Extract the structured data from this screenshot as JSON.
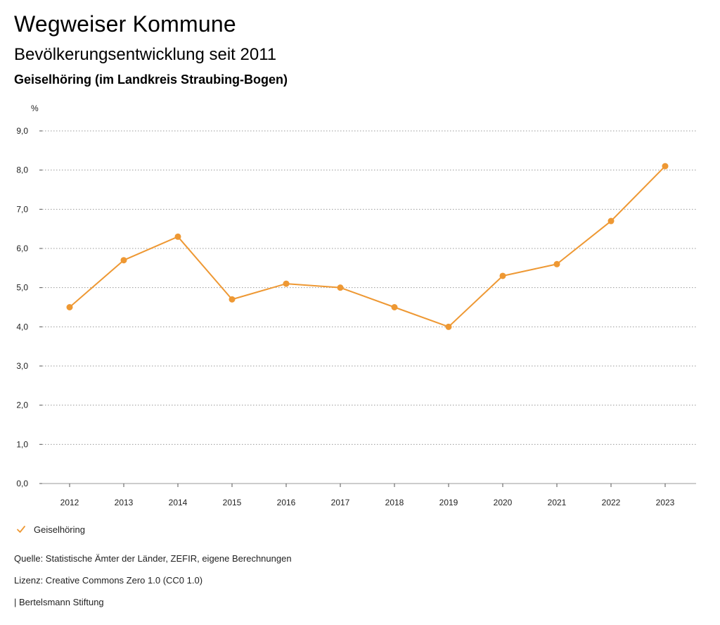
{
  "header": {
    "title": "Wegweiser Kommune",
    "subtitle": "Bevölkerungsentwicklung seit 2011",
    "place": "Geiselhöring (im Landkreis Straubing-Bogen)"
  },
  "chart_data": {
    "type": "line",
    "ylabel": "%",
    "ylim": [
      0,
      9
    ],
    "yticks": [
      "0,0",
      "1,0",
      "2,0",
      "3,0",
      "4,0",
      "5,0",
      "6,0",
      "7,0",
      "8,0",
      "9,0"
    ],
    "categories": [
      "2012",
      "2013",
      "2014",
      "2015",
      "2016",
      "2017",
      "2018",
      "2019",
      "2020",
      "2021",
      "2022",
      "2023"
    ],
    "series": [
      {
        "name": "Geiselhöring",
        "color": "#ee9833",
        "values": [
          4.5,
          5.7,
          6.3,
          4.7,
          5.1,
          5.0,
          4.5,
          4.0,
          5.3,
          5.6,
          6.7,
          8.1
        ]
      }
    ],
    "grid": true,
    "legend": "bottom-left"
  },
  "legend": {
    "label": "Geiselhöring",
    "icon": "check-icon"
  },
  "footer": {
    "source": "Quelle: Statistische Ämter der Länder, ZEFIR, eigene Berechnungen",
    "license": "Lizenz: Creative Commons Zero 1.0 (CC0 1.0)",
    "publisher": "| Bertelsmann Stiftung"
  }
}
